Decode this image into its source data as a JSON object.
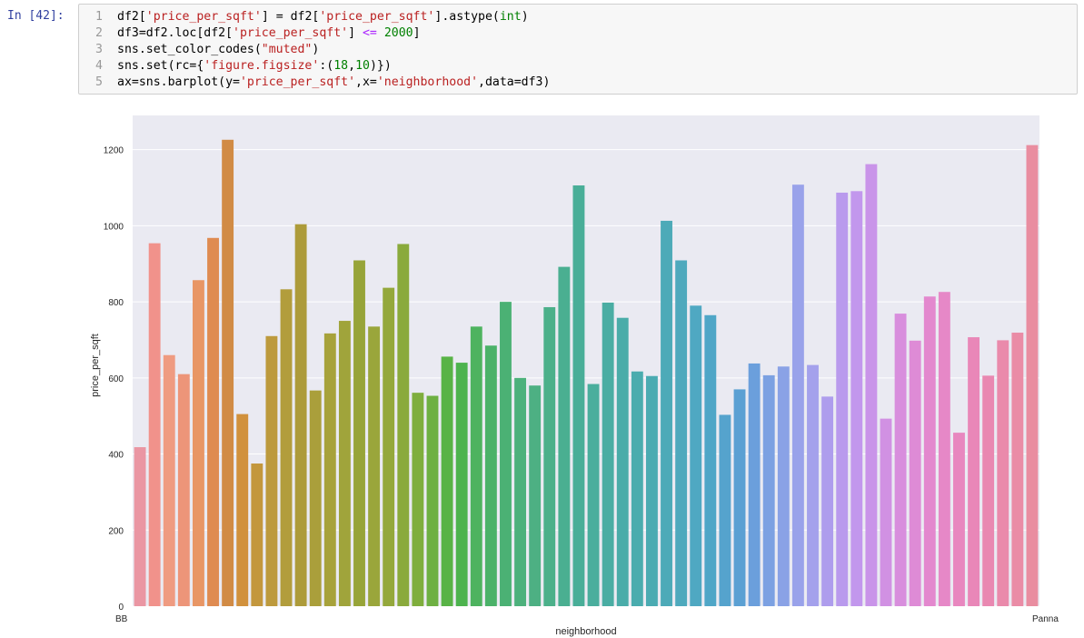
{
  "cell": {
    "prompt": "In [42]:",
    "lines": [
      {
        "num": "1",
        "text": "df2['price_per_sqft'] = df2['price_per_sqft'].astype(int)"
      },
      {
        "num": "2",
        "text": "df3=df2.loc[df2['price_per_sqft'] <= 2000]"
      },
      {
        "num": "3",
        "text": "sns.set_color_codes(\"muted\")"
      },
      {
        "num": "4",
        "text": "sns.set(rc={'figure.figsize':(18,10)})"
      },
      {
        "num": "5",
        "text": "ax=sns.barplot(y='price_per_sqft',x='neighborhood',data=df3)"
      }
    ]
  },
  "chart_data": {
    "type": "bar",
    "xlabel": "neighborhood",
    "ylabel": "price_per_sqft",
    "ylim": [
      0,
      1290
    ],
    "yticks": [
      0,
      200,
      400,
      600,
      800,
      1000,
      1200
    ],
    "grid": true,
    "first_category_label": "BB",
    "last_category_label": "Panna",
    "values": [
      418,
      954,
      660,
      610,
      857,
      968,
      1226,
      505,
      375,
      710,
      833,
      1004,
      567,
      717,
      750,
      909,
      735,
      837,
      952,
      561,
      553,
      656,
      640,
      735,
      685,
      800,
      600,
      580,
      786,
      892,
      1106,
      584,
      798,
      758,
      617,
      605,
      1013,
      909,
      790,
      765,
      503,
      570,
      638,
      607,
      630,
      1108,
      634,
      551,
      1087,
      1091,
      1162,
      493,
      769,
      698,
      814,
      826,
      456,
      707,
      606,
      699,
      719,
      1212
    ],
    "colors": [
      "#ea96a3",
      "#f1928b",
      "#ef9b81",
      "#ed9579",
      "#e89665",
      "#df8b51",
      "#d18b45",
      "#d1913d",
      "#c3973d",
      "#bd9a3d",
      "#b29d3c",
      "#ad9b3a",
      "#aa9f3b",
      "#a7a23b",
      "#a0a43b",
      "#97a439",
      "#9aa63b",
      "#94a83c",
      "#8aaa3c",
      "#7fae3d",
      "#6eb042",
      "#58b346",
      "#4db34e",
      "#4eb35f",
      "#4bb269",
      "#4bb174",
      "#4db17c",
      "#4db083",
      "#4cb08a",
      "#4aaf91",
      "#49ae98",
      "#4aae9d",
      "#4aada3",
      "#4aaca9",
      "#4aacae",
      "#4babb2",
      "#4daab8",
      "#4ea9bd",
      "#4fa8c2",
      "#4fa6c7",
      "#55a3cd",
      "#5ba0d3",
      "#6b9fdc",
      "#7ca1e2",
      "#8aa2e6",
      "#99a2ea",
      "#a4a1ec",
      "#ae9ded",
      "#b99aed",
      "#c297ed",
      "#c994e9",
      "#d191e3",
      "#d88edd",
      "#de8bd6",
      "#e388ce",
      "#e688c7",
      "#e887bf",
      "#e987b8",
      "#e988b1",
      "#ea8aab",
      "#ea8ca6",
      "#e98da0"
    ]
  }
}
